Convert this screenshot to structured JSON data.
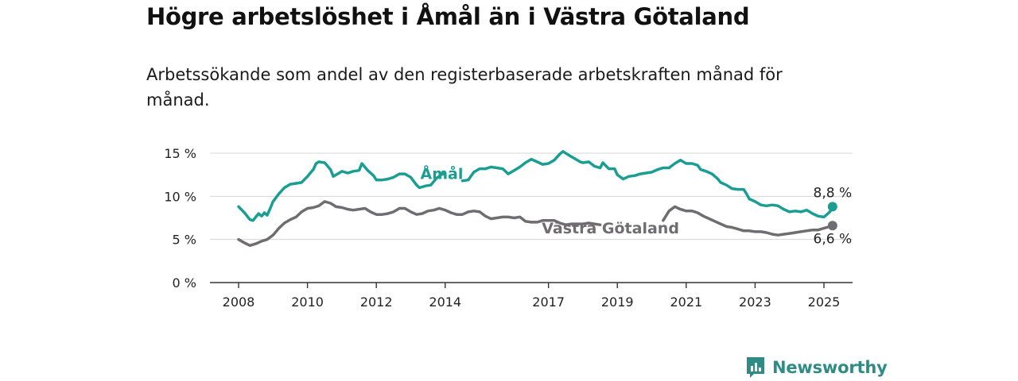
{
  "header": {
    "title": "Högre arbetslöshet i Åmål än i Västra Götaland",
    "subtitle": "Arbetssökande som andel av den registerbaserade arbetskraften månad för månad."
  },
  "brand": {
    "name": "Newsworthy",
    "icon": "bar-chart-speech-bubble-icon",
    "color": "#2f8c84"
  },
  "chart_data": {
    "type": "line",
    "title": "",
    "xlabel": "",
    "ylabel": "",
    "xlim": [
      2008,
      2025.2
    ],
    "ylim": [
      0,
      15
    ],
    "grid": true,
    "y_ticks": [
      {
        "value": 0,
        "label": "0 %"
      },
      {
        "value": 5,
        "label": "5 %"
      },
      {
        "value": 10,
        "label": "10 %"
      },
      {
        "value": 15,
        "label": "15 %"
      }
    ],
    "x_ticks": [
      {
        "value": 2008,
        "label": "2008"
      },
      {
        "value": 2010,
        "label": "2010"
      },
      {
        "value": 2012,
        "label": "2012"
      },
      {
        "value": 2014,
        "label": "2014"
      },
      {
        "value": 2017,
        "label": "2017"
      },
      {
        "value": 2019,
        "label": "2019"
      },
      {
        "value": 2021,
        "label": "2021"
      },
      {
        "value": 2023,
        "label": "2023"
      },
      {
        "value": 2025,
        "label": "2025"
      }
    ],
    "series": [
      {
        "name": "Åmål",
        "color": "#1a9e93",
        "last_label": "8,8 %",
        "segments": [
          [
            [
              2008.0,
              8.8
            ],
            [
              2008.17,
              8.1
            ],
            [
              2008.33,
              7.3
            ],
            [
              2008.42,
              7.2
            ],
            [
              2008.5,
              7.6
            ],
            [
              2008.58,
              8.0
            ],
            [
              2008.67,
              7.7
            ],
            [
              2008.75,
              8.1
            ],
            [
              2008.83,
              7.8
            ],
            [
              2008.92,
              8.6
            ],
            [
              2009.0,
              9.4
            ],
            [
              2009.17,
              10.3
            ],
            [
              2009.33,
              11.0
            ],
            [
              2009.5,
              11.4
            ],
            [
              2009.67,
              11.5
            ],
            [
              2009.83,
              11.6
            ],
            [
              2010.0,
              12.3
            ],
            [
              2010.17,
              13.1
            ],
            [
              2010.25,
              13.8
            ],
            [
              2010.33,
              14.0
            ],
            [
              2010.5,
              13.9
            ],
            [
              2010.67,
              13.1
            ],
            [
              2010.75,
              12.3
            ],
            [
              2010.92,
              12.7
            ],
            [
              2011.0,
              12.9
            ],
            [
              2011.17,
              12.7
            ],
            [
              2011.33,
              12.9
            ],
            [
              2011.5,
              13.0
            ],
            [
              2011.58,
              13.8
            ],
            [
              2011.75,
              13.0
            ],
            [
              2011.92,
              12.4
            ],
            [
              2012.0,
              11.9
            ],
            [
              2012.17,
              11.9
            ],
            [
              2012.33,
              12.0
            ],
            [
              2012.5,
              12.2
            ],
            [
              2012.67,
              12.6
            ],
            [
              2012.83,
              12.6
            ],
            [
              2013.0,
              12.2
            ],
            [
              2013.17,
              11.3
            ],
            [
              2013.25,
              11.0
            ],
            [
              2013.42,
              11.2
            ],
            [
              2013.58,
              11.3
            ],
            [
              2013.75,
              12.1
            ],
            [
              2013.92,
              12.6
            ],
            [
              2014.0,
              12.6
            ]
          ],
          [
            [
              2014.5,
              11.8
            ],
            [
              2014.67,
              11.9
            ],
            [
              2014.83,
              12.8
            ],
            [
              2015.0,
              13.2
            ],
            [
              2015.17,
              13.2
            ],
            [
              2015.33,
              13.4
            ],
            [
              2015.5,
              13.3
            ],
            [
              2015.67,
              13.2
            ],
            [
              2015.83,
              12.6
            ],
            [
              2016.0,
              13.0
            ],
            [
              2016.17,
              13.4
            ],
            [
              2016.33,
              13.9
            ],
            [
              2016.5,
              14.3
            ],
            [
              2016.67,
              14.0
            ],
            [
              2016.83,
              13.7
            ],
            [
              2017.0,
              13.8
            ],
            [
              2017.17,
              14.2
            ],
            [
              2017.33,
              14.9
            ],
            [
              2017.42,
              15.2
            ],
            [
              2017.58,
              14.8
            ],
            [
              2017.75,
              14.4
            ],
            [
              2017.92,
              14.0
            ],
            [
              2018.0,
              13.9
            ],
            [
              2018.17,
              14.0
            ],
            [
              2018.33,
              13.5
            ],
            [
              2018.5,
              13.3
            ],
            [
              2018.58,
              13.9
            ],
            [
              2018.75,
              13.2
            ],
            [
              2018.92,
              13.2
            ],
            [
              2019.0,
              12.5
            ],
            [
              2019.17,
              12.0
            ],
            [
              2019.33,
              12.3
            ],
            [
              2019.5,
              12.4
            ],
            [
              2019.67,
              12.6
            ],
            [
              2019.83,
              12.7
            ],
            [
              2020.0,
              12.8
            ],
            [
              2020.17,
              13.1
            ],
            [
              2020.33,
              13.3
            ],
            [
              2020.5,
              13.3
            ],
            [
              2020.67,
              13.8
            ],
            [
              2020.83,
              14.2
            ],
            [
              2021.0,
              13.8
            ],
            [
              2021.17,
              13.8
            ],
            [
              2021.33,
              13.6
            ],
            [
              2021.42,
              13.1
            ],
            [
              2021.58,
              12.9
            ],
            [
              2021.75,
              12.6
            ],
            [
              2021.92,
              12.0
            ],
            [
              2022.0,
              11.6
            ],
            [
              2022.17,
              11.3
            ],
            [
              2022.33,
              10.9
            ],
            [
              2022.5,
              10.8
            ],
            [
              2022.67,
              10.8
            ],
            [
              2022.75,
              10.3
            ],
            [
              2022.83,
              9.7
            ],
            [
              2023.0,
              9.4
            ],
            [
              2023.17,
              9.0
            ],
            [
              2023.33,
              8.9
            ],
            [
              2023.5,
              9.0
            ],
            [
              2023.67,
              8.9
            ],
            [
              2023.83,
              8.5
            ],
            [
              2024.0,
              8.2
            ],
            [
              2024.17,
              8.3
            ],
            [
              2024.33,
              8.2
            ],
            [
              2024.5,
              8.4
            ],
            [
              2024.67,
              8.0
            ],
            [
              2024.83,
              7.7
            ],
            [
              2025.0,
              7.6
            ],
            [
              2025.17,
              8.2
            ],
            [
              2025.25,
              8.8
            ]
          ]
        ]
      },
      {
        "name": "Västra Götaland",
        "color": "#6f6c72",
        "last_label": "6,6 %",
        "segments": [
          [
            [
              2008.0,
              5.0
            ],
            [
              2008.17,
              4.6
            ],
            [
              2008.33,
              4.3
            ],
            [
              2008.5,
              4.5
            ],
            [
              2008.67,
              4.8
            ],
            [
              2008.83,
              5.0
            ],
            [
              2009.0,
              5.5
            ],
            [
              2009.17,
              6.3
            ],
            [
              2009.33,
              6.9
            ],
            [
              2009.5,
              7.3
            ],
            [
              2009.67,
              7.6
            ],
            [
              2009.83,
              8.2
            ],
            [
              2010.0,
              8.6
            ],
            [
              2010.17,
              8.7
            ],
            [
              2010.33,
              8.9
            ],
            [
              2010.5,
              9.4
            ],
            [
              2010.67,
              9.2
            ],
            [
              2010.83,
              8.8
            ],
            [
              2011.0,
              8.7
            ],
            [
              2011.17,
              8.5
            ],
            [
              2011.33,
              8.4
            ],
            [
              2011.5,
              8.5
            ],
            [
              2011.67,
              8.6
            ],
            [
              2011.83,
              8.2
            ],
            [
              2012.0,
              7.9
            ],
            [
              2012.17,
              7.9
            ],
            [
              2012.33,
              8.0
            ],
            [
              2012.5,
              8.2
            ],
            [
              2012.67,
              8.6
            ],
            [
              2012.83,
              8.6
            ],
            [
              2013.0,
              8.2
            ],
            [
              2013.17,
              7.9
            ],
            [
              2013.33,
              8.0
            ],
            [
              2013.5,
              8.3
            ],
            [
              2013.67,
              8.4
            ],
            [
              2013.83,
              8.6
            ],
            [
              2014.0,
              8.4
            ],
            [
              2014.17,
              8.1
            ],
            [
              2014.33,
              7.9
            ],
            [
              2014.5,
              7.9
            ],
            [
              2014.67,
              8.2
            ],
            [
              2014.83,
              8.3
            ],
            [
              2015.0,
              8.2
            ],
            [
              2015.17,
              7.7
            ],
            [
              2015.33,
              7.4
            ],
            [
              2015.5,
              7.5
            ],
            [
              2015.67,
              7.6
            ],
            [
              2015.83,
              7.6
            ],
            [
              2016.0,
              7.5
            ],
            [
              2016.17,
              7.6
            ],
            [
              2016.33,
              7.1
            ],
            [
              2016.5,
              7.0
            ],
            [
              2016.67,
              7.0
            ],
            [
              2016.83,
              7.2
            ],
            [
              2017.0,
              7.2
            ],
            [
              2017.17,
              7.2
            ],
            [
              2017.33,
              6.9
            ],
            [
              2017.5,
              6.7
            ],
            [
              2017.67,
              6.8
            ],
            [
              2017.83,
              6.8
            ],
            [
              2018.0,
              6.8
            ],
            [
              2018.17,
              6.9
            ],
            [
              2018.33,
              6.8
            ],
            [
              2018.5,
              6.7
            ]
          ],
          [
            [
              2020.33,
              7.2
            ],
            [
              2020.5,
              8.3
            ],
            [
              2020.67,
              8.8
            ],
            [
              2020.83,
              8.5
            ],
            [
              2021.0,
              8.3
            ],
            [
              2021.17,
              8.3
            ],
            [
              2021.33,
              8.1
            ],
            [
              2021.5,
              7.7
            ],
            [
              2021.67,
              7.4
            ],
            [
              2021.83,
              7.1
            ],
            [
              2022.0,
              6.8
            ],
            [
              2022.17,
              6.5
            ],
            [
              2022.33,
              6.4
            ],
            [
              2022.5,
              6.2
            ],
            [
              2022.67,
              6.0
            ],
            [
              2022.83,
              6.0
            ],
            [
              2023.0,
              5.9
            ],
            [
              2023.17,
              5.9
            ],
            [
              2023.33,
              5.8
            ],
            [
              2023.5,
              5.6
            ],
            [
              2023.67,
              5.5
            ],
            [
              2023.83,
              5.6
            ],
            [
              2024.0,
              5.7
            ],
            [
              2024.17,
              5.8
            ],
            [
              2024.33,
              5.9
            ],
            [
              2024.5,
              6.0
            ],
            [
              2024.67,
              6.1
            ],
            [
              2024.83,
              6.1
            ],
            [
              2025.0,
              6.3
            ],
            [
              2025.17,
              6.5
            ],
            [
              2025.25,
              6.6
            ]
          ]
        ]
      }
    ],
    "labels": [
      {
        "series": 0,
        "text": "Åmål",
        "x": 2013.9,
        "y": 12.0
      },
      {
        "series": 1,
        "text": "Västra Götaland",
        "x": 2018.8,
        "y": 5.7
      }
    ]
  }
}
